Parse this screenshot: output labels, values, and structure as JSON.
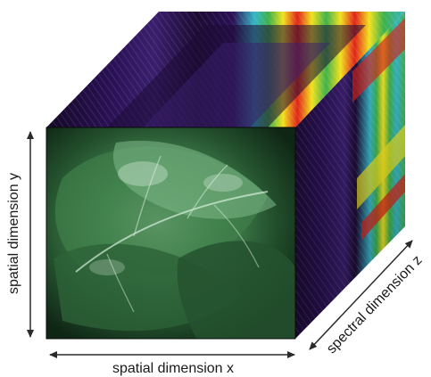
{
  "labels": {
    "spatial_y": "spatial dimension y",
    "spatial_x": "spatial dimension x",
    "spectral_z": "spectral dimension z"
  },
  "colors": {
    "arrow": "#2a2a2a",
    "text": "#1a1a1a",
    "dark_band": "#1d0b34",
    "purple_band": "#3a1f6e",
    "leaf_dark": "#14321c",
    "leaf_mid": "#2f6b3a",
    "leaf_light": "#8fc49a",
    "spectrum_red": "#e0241b",
    "spectrum_yellow": "#f2e21e",
    "spectrum_green": "#3fb14a",
    "spectrum_cyan": "#36b6c8"
  }
}
